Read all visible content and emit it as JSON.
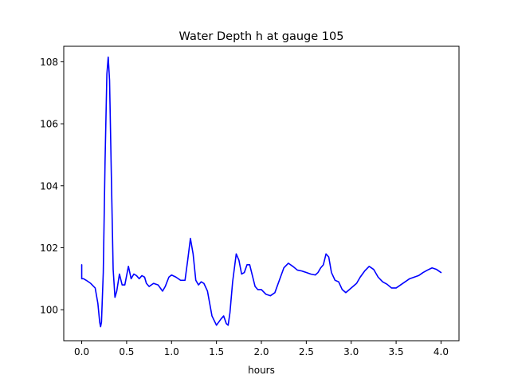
{
  "chart_data": {
    "type": "line",
    "title": "Water Depth h at gauge 105",
    "xlabel": "hours",
    "ylabel": "",
    "xlim": [
      -0.2,
      4.2
    ],
    "ylim": [
      99.0,
      108.5
    ],
    "xticks": [
      0.0,
      0.5,
      1.0,
      1.5,
      2.0,
      2.5,
      3.0,
      3.5,
      4.0
    ],
    "xtick_labels": [
      "0.0",
      "0.5",
      "1.0",
      "1.5",
      "2.0",
      "2.5",
      "3.0",
      "3.5",
      "4.0"
    ],
    "yticks": [
      100,
      102,
      104,
      106,
      108
    ],
    "ytick_labels": [
      "100",
      "102",
      "104",
      "106",
      "108"
    ],
    "grid": false,
    "series": [
      {
        "color": "#0000ff",
        "x": [
          0.0,
          0.0,
          0.02,
          0.05,
          0.1,
          0.15,
          0.18,
          0.2,
          0.21,
          0.22,
          0.24,
          0.26,
          0.28,
          0.295,
          0.31,
          0.33,
          0.35,
          0.37,
          0.39,
          0.42,
          0.45,
          0.48,
          0.52,
          0.55,
          0.58,
          0.61,
          0.64,
          0.67,
          0.7,
          0.72,
          0.75,
          0.8,
          0.85,
          0.9,
          0.93,
          0.97,
          1.0,
          1.05,
          1.1,
          1.15,
          1.18,
          1.21,
          1.24,
          1.27,
          1.3,
          1.33,
          1.36,
          1.4,
          1.45,
          1.5,
          1.55,
          1.58,
          1.61,
          1.63,
          1.65,
          1.68,
          1.72,
          1.75,
          1.78,
          1.81,
          1.84,
          1.87,
          1.9,
          1.93,
          1.96,
          2.0,
          2.05,
          2.1,
          2.15,
          2.2,
          2.25,
          2.3,
          2.35,
          2.4,
          2.45,
          2.5,
          2.55,
          2.6,
          2.63,
          2.66,
          2.69,
          2.72,
          2.75,
          2.78,
          2.82,
          2.86,
          2.9,
          2.94,
          2.98,
          3.02,
          3.06,
          3.1,
          3.15,
          3.2,
          3.25,
          3.3,
          3.35,
          3.4,
          3.45,
          3.5,
          3.55,
          3.6,
          3.65,
          3.7,
          3.75,
          3.8,
          3.85,
          3.9,
          3.95,
          4.0
        ],
        "y": [
          101.45,
          101.0,
          101.0,
          100.95,
          100.85,
          100.7,
          100.2,
          99.6,
          99.45,
          99.6,
          101.2,
          104.8,
          107.6,
          108.15,
          107.4,
          104.3,
          101.3,
          100.4,
          100.6,
          101.15,
          100.8,
          100.8,
          101.4,
          101.0,
          101.15,
          101.1,
          101.0,
          101.1,
          101.05,
          100.85,
          100.75,
          100.85,
          100.8,
          100.6,
          100.75,
          101.05,
          101.12,
          101.05,
          100.95,
          100.95,
          101.6,
          102.3,
          101.8,
          100.95,
          100.8,
          100.9,
          100.85,
          100.6,
          99.8,
          99.5,
          99.7,
          99.8,
          99.55,
          99.5,
          99.9,
          100.9,
          101.8,
          101.6,
          101.15,
          101.2,
          101.45,
          101.45,
          101.1,
          100.75,
          100.65,
          100.65,
          100.5,
          100.45,
          100.55,
          100.95,
          101.35,
          101.5,
          101.4,
          101.28,
          101.25,
          101.2,
          101.15,
          101.12,
          101.2,
          101.35,
          101.45,
          101.8,
          101.7,
          101.2,
          100.95,
          100.9,
          100.65,
          100.55,
          100.65,
          100.75,
          100.85,
          101.05,
          101.25,
          101.4,
          101.3,
          101.05,
          100.9,
          100.82,
          100.7,
          100.7,
          100.8,
          100.9,
          101.0,
          101.05,
          101.1,
          101.2,
          101.28,
          101.35,
          101.3,
          101.2
        ]
      }
    ]
  }
}
